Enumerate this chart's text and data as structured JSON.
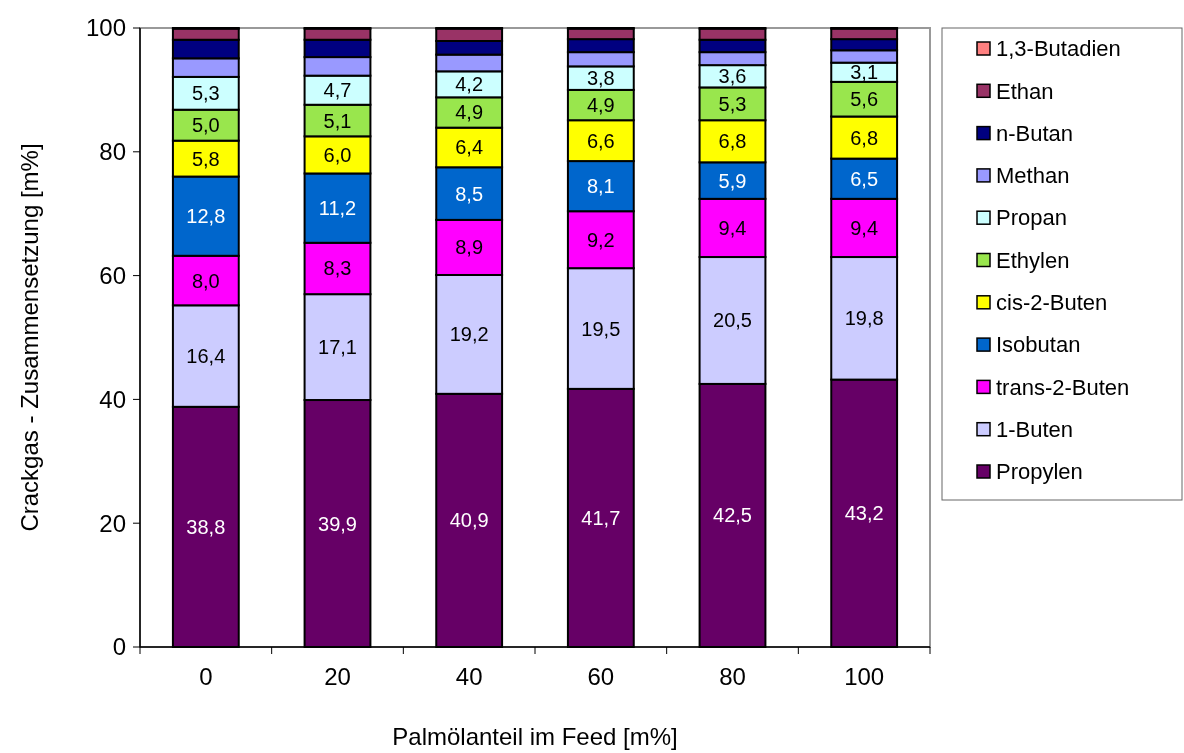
{
  "chart_data": {
    "type": "bar",
    "stacked": true,
    "xlabel": "Palmölanteil im Feed [m%]",
    "ylabel": "Crackgas - Zusammensetzung [m%]",
    "categories": [
      "0",
      "20",
      "40",
      "60",
      "80",
      "100"
    ],
    "ylim": [
      0,
      100
    ],
    "yticks": [
      0,
      20,
      40,
      60,
      80,
      100
    ],
    "grid": false,
    "legend": "right",
    "series": [
      {
        "name": "Propylen",
        "color": "#660066",
        "values": [
          38.8,
          39.9,
          40.9,
          41.7,
          42.5,
          43.2
        ],
        "value_labels": [
          "38,8",
          "39,9",
          "40,9",
          "41,7",
          "42,5",
          "43,2"
        ]
      },
      {
        "name": "1-Buten",
        "color": "#ccccff",
        "values": [
          16.4,
          17.1,
          19.2,
          19.5,
          20.5,
          19.8
        ],
        "value_labels": [
          "16,4",
          "17,1",
          "19,2",
          "19,5",
          "20,5",
          "19,8"
        ]
      },
      {
        "name": "trans-2-Buten",
        "color": "#ff00ff",
        "values": [
          8.0,
          8.3,
          8.9,
          9.2,
          9.4,
          9.4
        ],
        "value_labels": [
          "8,0",
          "8,3",
          "8,9",
          "9,2",
          "9,4",
          "9,4"
        ]
      },
      {
        "name": "Isobutan",
        "color": "#0066cc",
        "values": [
          12.8,
          11.2,
          8.5,
          8.1,
          5.9,
          6.5
        ],
        "value_labels": [
          "12,8",
          "11,2",
          "8,5",
          "8,1",
          "5,9",
          "6,5"
        ]
      },
      {
        "name": "cis-2-Buten",
        "color": "#ffff00",
        "values": [
          5.8,
          6.0,
          6.4,
          6.6,
          6.8,
          6.8
        ],
        "value_labels": [
          "5,8",
          "6,0",
          "6,4",
          "6,6",
          "6,8",
          "6,8"
        ]
      },
      {
        "name": "Ethylen",
        "color": "#99e64d",
        "values": [
          5.0,
          5.1,
          4.9,
          4.9,
          5.3,
          5.6
        ],
        "value_labels": [
          "5,0",
          "5,1",
          "4,9",
          "4,9",
          "5,3",
          "5,6"
        ]
      },
      {
        "name": "Propan",
        "color": "#ccffff",
        "values": [
          5.3,
          4.7,
          4.2,
          3.8,
          3.6,
          3.1
        ],
        "value_labels": [
          "5,3",
          "4,7",
          "4,2",
          "3,8",
          "3,6",
          "3,1"
        ]
      },
      {
        "name": "Methan",
        "color": "#9999ff",
        "values": [
          3.0,
          3.0,
          2.7,
          2.3,
          2.1,
          2.0
        ]
      },
      {
        "name": "n-Butan",
        "color": "#000080",
        "values": [
          3.0,
          2.8,
          2.2,
          2.1,
          2.0,
          1.8
        ]
      },
      {
        "name": "Ethan",
        "color": "#993366",
        "values": [
          1.8,
          1.8,
          2.0,
          1.7,
          1.8,
          1.7
        ]
      },
      {
        "name": "1,3-Butadien",
        "color": "#ff8080",
        "values": [
          0.1,
          0.1,
          0.1,
          0.1,
          0.1,
          0.1
        ]
      }
    ]
  }
}
